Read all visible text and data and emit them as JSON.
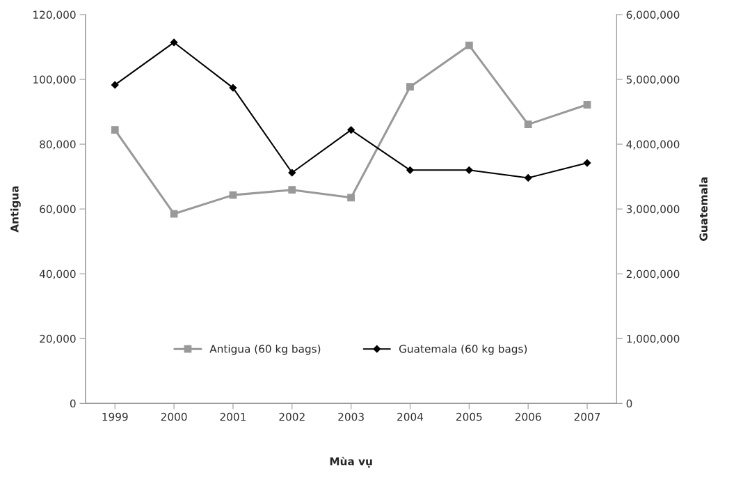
{
  "chart_data": {
    "type": "line",
    "xlabel": "Mùa vụ",
    "ylabel": "Antigua",
    "y2label": "Guatemala",
    "categories": [
      "1999",
      "2000",
      "2001",
      "2002",
      "2003",
      "2004",
      "2005",
      "2006",
      "2007"
    ],
    "series": [
      {
        "name": "Antigua (60 kg bags)",
        "color": "#999999",
        "marker": "square",
        "values": [
          84400,
          58500,
          64300,
          65900,
          63500,
          97700,
          110500,
          86100,
          92200
        ]
      },
      {
        "name": "Guatemala (60 kg bags)",
        "color": "#000000",
        "marker": "diamond",
        "axis": "y2",
        "values": [
          4915000,
          5570000,
          4870000,
          3560000,
          4220000,
          3600000,
          3600000,
          3480000,
          3710000
        ]
      }
    ],
    "ylim": [
      0,
      120000
    ],
    "yticks": [
      {
        "value": 0,
        "label": "0"
      },
      {
        "value": 20000,
        "label": "20,000"
      },
      {
        "value": 40000,
        "label": "40,000"
      },
      {
        "value": 60000,
        "label": "60,000"
      },
      {
        "value": 80000,
        "label": "80,000"
      },
      {
        "value": 100000,
        "label": "100,000"
      },
      {
        "value": 120000,
        "label": "120,000"
      }
    ],
    "y2lim": [
      0,
      6000000
    ],
    "y2ticks": [
      {
        "value": 0,
        "label": "0"
      },
      {
        "value": 1000000,
        "label": "1,000,000"
      },
      {
        "value": 2000000,
        "label": "2,000,000"
      },
      {
        "value": 3000000,
        "label": "3,000,000"
      },
      {
        "value": 4000000,
        "label": "4,000,000"
      },
      {
        "value": 5000000,
        "label": "5,000,000"
      },
      {
        "value": 6000000,
        "label": "6,000,000"
      }
    ],
    "grid": false,
    "legend": "bottom",
    "line_style": "solid"
  }
}
